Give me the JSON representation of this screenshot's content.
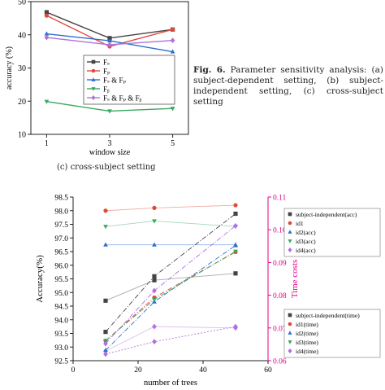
{
  "caption": {
    "label": "Fig. 6.",
    "text": "Parameter sensitivity analysis: (a) subject-dependent setting, (b) subject-independent setting, (c) cross-subject setting"
  },
  "subcaption": "(c) cross-subject setting",
  "chart_data": [
    {
      "type": "line",
      "xlabel": "window size",
      "ylabel": "accuracy (%)",
      "x": [
        1,
        3,
        5
      ],
      "xlim": [
        0.5,
        5.5
      ],
      "ylim": [
        10,
        50
      ],
      "yticks": [
        10,
        20,
        30,
        40,
        50
      ],
      "legend_position": "center",
      "series": [
        {
          "name": "Fₛ",
          "values": [
            46.8,
            39.0,
            41.6
          ],
          "color": "#444444",
          "marker": "square"
        },
        {
          "name": "Fₚ",
          "values": [
            45.8,
            36.5,
            41.6
          ],
          "color": "#e04a3a",
          "marker": "circle"
        },
        {
          "name": "Fₛ & Fₚ",
          "values": [
            40.3,
            38.2,
            34.9
          ],
          "color": "#2f6fd0",
          "marker": "triangle-up"
        },
        {
          "name": "Fᵦ",
          "values": [
            19.9,
            17.0,
            17.8
          ],
          "color": "#3aa860",
          "marker": "triangle-down"
        },
        {
          "name": "Fₛ & Fₚ & Fᵦ",
          "values": [
            39.2,
            37.0,
            38.3
          ],
          "color": "#b070e0",
          "marker": "diamond"
        }
      ]
    },
    {
      "type": "line",
      "xlabel": "number of trees",
      "ylabel": "Accuracy(%)",
      "y2label": "Time costs",
      "x": [
        10,
        25,
        50
      ],
      "xlim": [
        0,
        60
      ],
      "xticks": [
        0,
        20,
        40,
        60
      ],
      "ylim": [
        92.5,
        98.5
      ],
      "yticks": [
        92.5,
        93.0,
        93.5,
        94.0,
        94.5,
        95.0,
        95.5,
        96.0,
        96.5,
        97.0,
        97.5,
        98.0,
        98.5
      ],
      "y2lim": [
        0.06,
        0.11
      ],
      "y2ticks": [
        0.06,
        0.07,
        0.08,
        0.09,
        0.1,
        0.11
      ],
      "legend_position": "right",
      "series": [
        {
          "name": "subject-independent(acc)",
          "axis": "left",
          "values": [
            94.7,
            95.45,
            95.7
          ],
          "color": "#444444",
          "marker": "square",
          "dash": "none"
        },
        {
          "name": "id1",
          "axis": "left",
          "values": [
            98.0,
            98.1,
            98.2
          ],
          "color": "#e04a3a",
          "marker": "circle",
          "dash": "none"
        },
        {
          "name": "id2(acc)",
          "axis": "left",
          "values": [
            96.75,
            96.75,
            96.75
          ],
          "color": "#2f6fd0",
          "marker": "triangle-up",
          "dash": "none"
        },
        {
          "name": "id3(acc)",
          "axis": "left",
          "values": [
            97.42,
            97.62,
            97.42
          ],
          "color": "#3aa860",
          "marker": "triangle-down",
          "dash": "none"
        },
        {
          "name": "id4(acc)",
          "axis": "left",
          "values": [
            92.85,
            93.75,
            93.7
          ],
          "color": "#b070e0",
          "marker": "diamond",
          "dash": "none"
        },
        {
          "name": "subject-independent(time)",
          "axis": "right",
          "values": [
            0.0688,
            0.0858,
            0.1049
          ],
          "color": "#444444",
          "marker": "square",
          "dash": "6 2 1 2"
        },
        {
          "name": "id1(time)",
          "axis": "right",
          "values": [
            0.0661,
            0.0793,
            0.0932
          ],
          "color": "#e04a3a",
          "marker": "circle",
          "dash": "6 2 1 2"
        },
        {
          "name": "id2(time)",
          "axis": "right",
          "values": [
            0.0632,
            0.078,
            0.0952
          ],
          "color": "#2f6fd0",
          "marker": "triangle-up",
          "dash": "6 2 1 2"
        },
        {
          "name": "id3(time)",
          "axis": "right",
          "values": [
            0.0661,
            0.0787,
            0.0934
          ],
          "color": "#3aa860",
          "marker": "triangle-down",
          "dash": "6 2 1 2"
        },
        {
          "name": "id4(time)",
          "axis": "right",
          "values": [
            0.0652,
            0.0814,
            0.1012
          ],
          "color": "#b070e0",
          "marker": "diamond",
          "dash": "6 2 1 2"
        }
      ],
      "extra_series": [
        {
          "name": "",
          "axis": "right",
          "values": [
            0.062,
            0.0658,
            0.0704
          ],
          "color": "#b070e0",
          "marker": "diamond",
          "dash": "2 2"
        }
      ]
    }
  ]
}
